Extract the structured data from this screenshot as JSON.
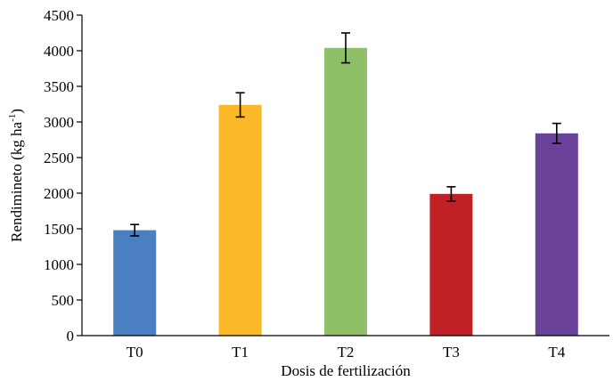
{
  "chart_data": {
    "type": "bar",
    "title": "",
    "xlabel": "Dosis de fertilización",
    "ylabel_main": "Rendimineto (kg ha",
    "ylabel_sup": "-1",
    "ylabel_close": ")",
    "categories": [
      "T0",
      "T1",
      "T2",
      "T3",
      "T4"
    ],
    "values": [
      1480,
      3240,
      4040,
      1990,
      2840
    ],
    "errors": [
      80,
      170,
      210,
      100,
      140
    ],
    "colors": [
      "#4a7fc1",
      "#fbb829",
      "#8fbf67",
      "#bf2126",
      "#6a4198"
    ],
    "ylim": [
      0,
      4500
    ],
    "yticks": [
      0,
      500,
      1000,
      1500,
      2000,
      2500,
      3000,
      3500,
      4000,
      4500
    ],
    "grid": false,
    "legend": "none"
  }
}
